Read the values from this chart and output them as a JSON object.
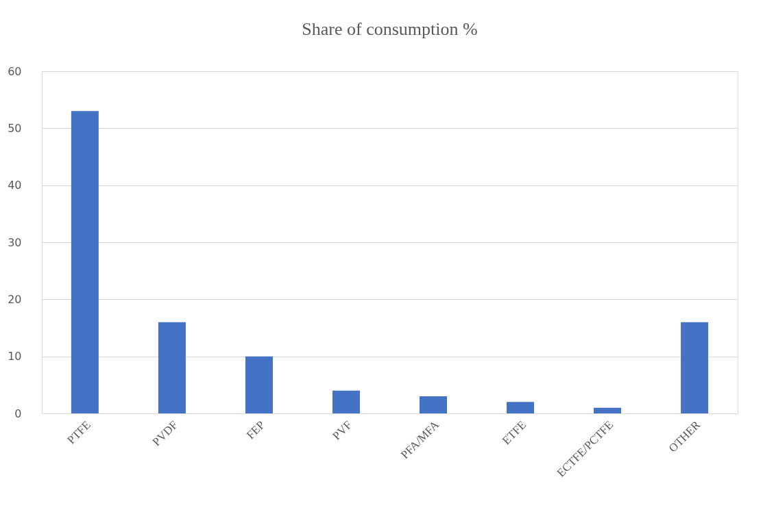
{
  "chart_data": {
    "type": "bar",
    "title": "Share of consumption %",
    "categories": [
      "PTFE",
      "PVDF",
      "FEP",
      "PVF",
      "PFA/MFA",
      "ETFE",
      "ECTFE/PCTFE",
      "OTHER"
    ],
    "values": [
      53,
      16,
      10,
      4,
      3,
      2,
      1,
      16
    ],
    "color": "#4472c4",
    "ylim": [
      0,
      60
    ],
    "yticks": [
      0,
      10,
      20,
      30,
      40,
      50,
      60
    ],
    "grid": "y"
  }
}
